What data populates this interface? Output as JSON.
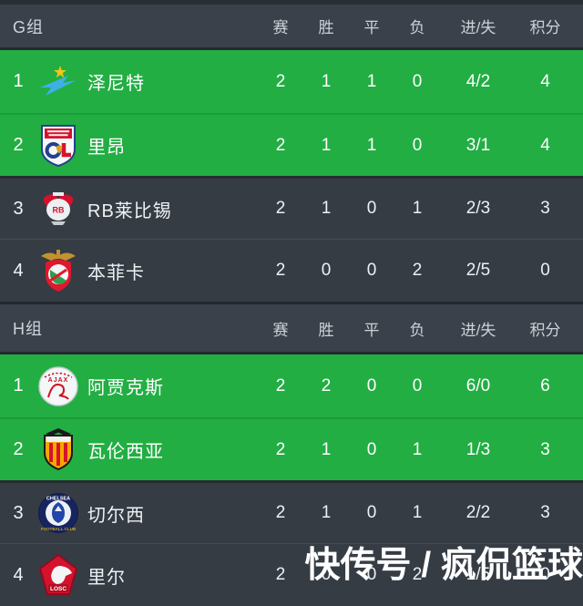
{
  "table": {
    "stat_keys": [
      "matches",
      "wins",
      "draws",
      "losses",
      "goals",
      "points"
    ],
    "columns": [
      "赛",
      "胜",
      "平",
      "负",
      "进/失",
      "积分"
    ],
    "groups": [
      {
        "label": "G组",
        "rows": [
          {
            "rank": "1",
            "team": "泽尼特",
            "logo": "zenit-badge",
            "highlight": true,
            "stats": [
              "2",
              "1",
              "1",
              "0",
              "4/2",
              "4"
            ]
          },
          {
            "rank": "2",
            "team": "里昂",
            "logo": "lyon-badge",
            "highlight": true,
            "stats": [
              "2",
              "1",
              "1",
              "0",
              "3/1",
              "4"
            ]
          },
          {
            "rank": "3",
            "team": "RB莱比锡",
            "logo": "leipzig-badge",
            "highlight": false,
            "stats": [
              "2",
              "1",
              "0",
              "1",
              "2/3",
              "3"
            ]
          },
          {
            "rank": "4",
            "team": "本菲卡",
            "logo": "benfica-badge",
            "highlight": false,
            "stats": [
              "2",
              "0",
              "0",
              "2",
              "2/5",
              "0"
            ]
          }
        ]
      },
      {
        "label": "H组",
        "rows": [
          {
            "rank": "1",
            "team": "阿贾克斯",
            "logo": "ajax-badge",
            "highlight": true,
            "stats": [
              "2",
              "2",
              "0",
              "0",
              "6/0",
              "6"
            ]
          },
          {
            "rank": "2",
            "team": "瓦伦西亚",
            "logo": "valencia-badge",
            "highlight": true,
            "stats": [
              "2",
              "1",
              "0",
              "1",
              "1/3",
              "3"
            ]
          },
          {
            "rank": "3",
            "team": "切尔西",
            "logo": "chelsea-badge",
            "highlight": false,
            "stats": [
              "2",
              "1",
              "0",
              "1",
              "2/2",
              "3"
            ]
          },
          {
            "rank": "4",
            "team": "里尔",
            "logo": "lille-badge",
            "highlight": false,
            "stats": [
              "2",
              "0",
              "0",
              "2",
              "1/5",
              "0"
            ]
          }
        ]
      }
    ]
  },
  "watermark": {
    "text": "快传号 / 疯侃篮球"
  },
  "colors": {
    "row_highlight_green": "#22ae43",
    "row_dark": "#353c44",
    "header_bg": "#3a414a",
    "divider_dark": "#24292f",
    "text_primary": "#ffffff",
    "text_header": "#ccd2d8"
  }
}
